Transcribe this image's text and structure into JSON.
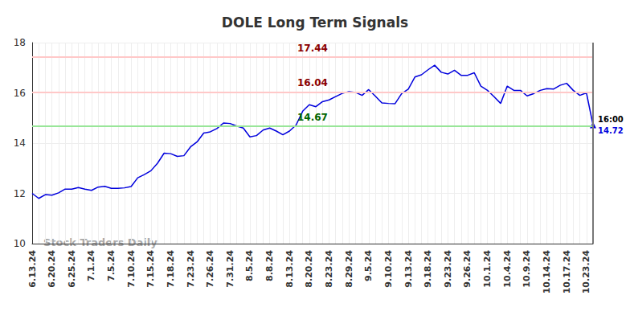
{
  "chart_data": {
    "type": "line",
    "title": "DOLE Long Term Signals",
    "watermark": "Stock Traders Daily",
    "categories": [
      "6.13.24",
      null,
      null,
      "6.20.24",
      null,
      null,
      "6.25.24",
      null,
      null,
      "7.1.24",
      null,
      null,
      "7.5.24",
      null,
      null,
      "7.10.24",
      null,
      null,
      "7.15.24",
      null,
      null,
      "7.18.24",
      null,
      null,
      "7.23.24",
      null,
      null,
      "7.26.24",
      null,
      null,
      "7.31.24",
      null,
      null,
      "8.5.24",
      null,
      null,
      "8.8.24",
      null,
      null,
      "8.13.24",
      null,
      null,
      "8.20.24",
      null,
      null,
      "8.23.24",
      null,
      null,
      "8.29.24",
      null,
      null,
      "9.5.24",
      null,
      null,
      "9.10.24",
      null,
      null,
      "9.13.24",
      null,
      null,
      "9.18.24",
      null,
      null,
      "9.23.24",
      null,
      null,
      "9.26.24",
      null,
      null,
      "10.1.24",
      null,
      null,
      "10.4.24",
      null,
      null,
      "10.9.24",
      null,
      null,
      "10.14.24",
      null,
      null,
      "10.17.24",
      null,
      null,
      "10.23.24",
      null
    ],
    "values": [
      12.0,
      11.8,
      11.95,
      11.93,
      12.02,
      12.17,
      12.17,
      12.23,
      12.17,
      12.12,
      12.25,
      12.28,
      12.2,
      12.2,
      12.22,
      12.27,
      12.62,
      12.75,
      12.9,
      13.2,
      13.6,
      13.58,
      13.47,
      13.5,
      13.85,
      14.05,
      14.4,
      14.45,
      14.58,
      14.8,
      14.78,
      14.68,
      14.6,
      14.25,
      14.3,
      14.52,
      14.6,
      14.48,
      14.33,
      14.48,
      14.72,
      15.27,
      15.53,
      15.45,
      15.65,
      15.72,
      15.85,
      15.98,
      16.05,
      16.02,
      15.9,
      16.13,
      15.87,
      15.6,
      15.58,
      15.57,
      15.97,
      16.15,
      16.63,
      16.72,
      16.92,
      17.1,
      16.82,
      16.75,
      16.9,
      16.7,
      16.7,
      16.8,
      16.27,
      16.1,
      15.85,
      15.58,
      16.27,
      16.1,
      16.1,
      15.88,
      15.97,
      16.1,
      16.17,
      16.15,
      16.3,
      16.38,
      16.1,
      15.9,
      16.0,
      14.72
    ],
    "color": "#0000dd",
    "ylim": [
      10,
      18
    ],
    "yticks": [
      10,
      12,
      14,
      16,
      18
    ],
    "grid": true,
    "reference_lines": [
      {
        "value": 17.44,
        "color": "#8b0000",
        "line_color": "#ffc8c8"
      },
      {
        "value": 16.04,
        "color": "#8b0000",
        "line_color": "#ffc8c8"
      },
      {
        "value": 14.67,
        "color": "#006400",
        "line_color": "#99e699"
      }
    ],
    "last_label": {
      "time": "16:00",
      "value": 14.72
    }
  }
}
